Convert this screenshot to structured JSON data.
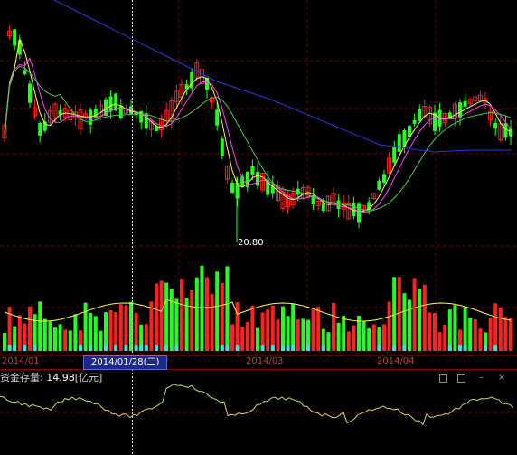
{
  "colors": {
    "up": "#ff2020",
    "down": "#20ff20",
    "ma_slow": "#3030e8",
    "ma_fast": "#ffff40",
    "ma_mid": "#ff40ff",
    "ma_long": "#40d040",
    "grid": "#7a0000",
    "crosshair": "#d8d8d8",
    "fund_line": "#d8d840"
  },
  "price_chart": {
    "low_label": "20.80",
    "month_labels": [
      "2014/01",
      "2014/03",
      "2014/04"
    ],
    "cursor_date": "2014/01/28(二)"
  },
  "fund_panel": {
    "title": "资金存量:",
    "value": "14.98",
    "unit": "[亿元]",
    "controls": {
      "restore": "restore-icon",
      "maximize": "maximize-icon",
      "minimize": "minimize-icon",
      "close": "close-icon"
    }
  }
}
